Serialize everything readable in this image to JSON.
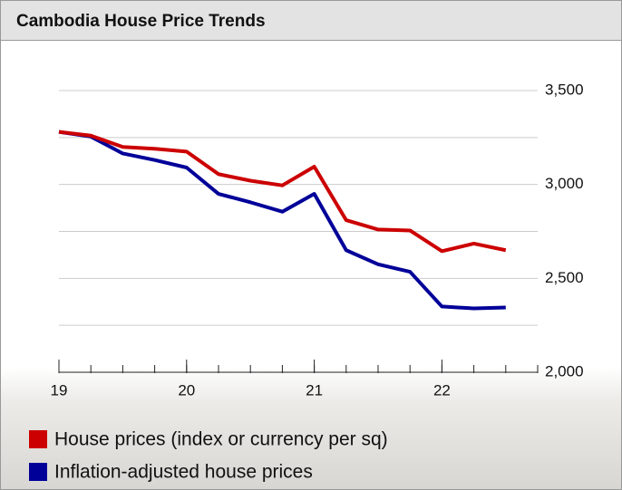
{
  "chart_data": {
    "type": "line",
    "title": "Cambodia House Price Trends",
    "x": [
      19,
      19.25,
      19.5,
      19.75,
      20,
      20.25,
      20.5,
      20.75,
      21,
      21.25,
      21.5,
      21.75,
      22,
      22.25,
      22.5
    ],
    "xlim": [
      19,
      22.75
    ],
    "xticks": [
      19,
      20,
      21,
      22
    ],
    "series": [
      {
        "name": "House prices (index or currency per sq)",
        "color": "#cc0000",
        "values": [
          3280,
          3260,
          3200,
          3190,
          3175,
          3055,
          3020,
          2995,
          3095,
          2810,
          2760,
          2755,
          2645,
          2685,
          2650
        ]
      },
      {
        "name": "Inflation-adjusted house prices",
        "color": "#000099",
        "values": [
          3280,
          3255,
          3165,
          3130,
          3090,
          2950,
          2905,
          2855,
          2950,
          2650,
          2575,
          2535,
          2350,
          2340,
          2345
        ]
      }
    ],
    "ylim": [
      2000,
      3500
    ],
    "yticks": [
      {
        "value": 2000,
        "label": "2,000"
      },
      {
        "value": 2500,
        "label": "2,500"
      },
      {
        "value": 3000,
        "label": "3,000"
      },
      {
        "value": 3500,
        "label": "3,500"
      }
    ],
    "minor_yticks": [
      2250,
      2750,
      3250
    ],
    "grid": true,
    "y_axis_side": "right",
    "legend": "bottom"
  }
}
